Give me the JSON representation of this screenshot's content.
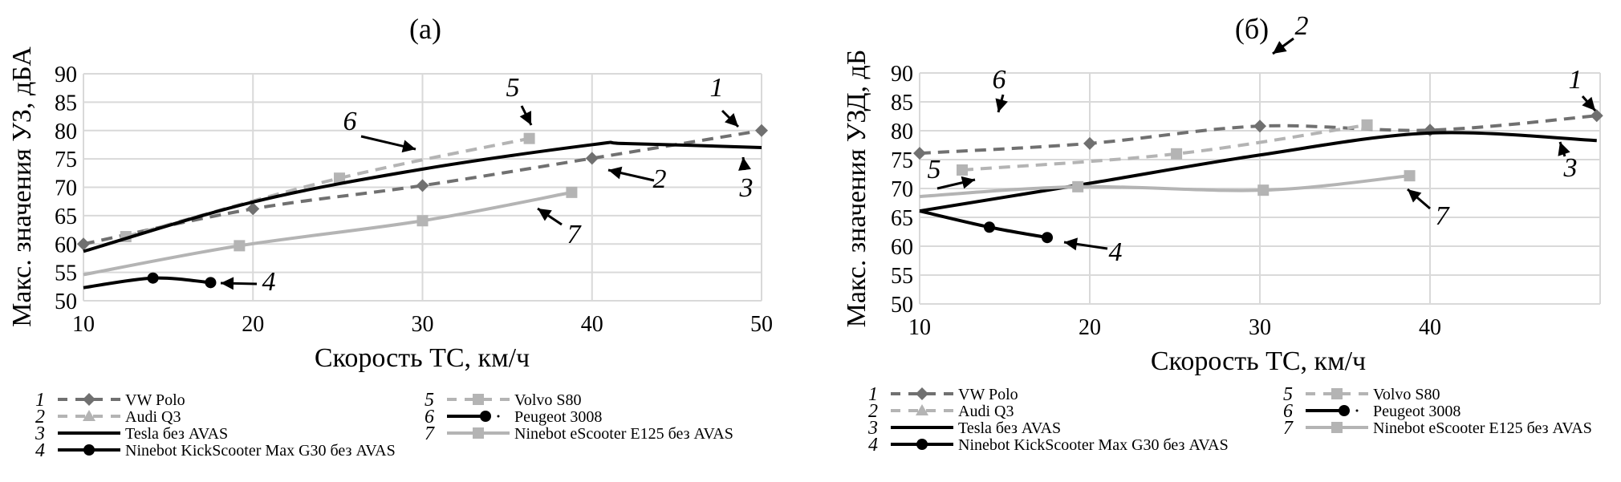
{
  "chart_data": [
    {
      "type": "line",
      "panel_label": "(a)",
      "xlabel": "Скорость ТС, км/ч",
      "ylabel": "Макс. значения УЗ, дБА",
      "xlim": [
        10,
        50
      ],
      "ylim": [
        50,
        90
      ],
      "xticks": [
        "10",
        "20",
        "30",
        "40",
        "50"
      ],
      "yticks": [
        "50",
        "55",
        "60",
        "65",
        "70",
        "75",
        "80",
        "85",
        "90"
      ],
      "grid": true,
      "series": [
        {
          "id": "1",
          "name": "VW Polo",
          "x": [
            10,
            20,
            30,
            40,
            50
          ],
          "y": [
            60.0,
            66.2,
            70.3,
            75.1,
            80.0
          ]
        },
        {
          "id": "5",
          "name": "Volvo S80",
          "x": [
            12.5,
            25.1,
            36.3
          ],
          "y": [
            61.3,
            71.6,
            78.6
          ]
        },
        {
          "id": "3",
          "name": "Tesla без AVAS",
          "x": [
            10,
            20,
            30,
            40,
            42,
            50
          ],
          "y": [
            58.7,
            67.4,
            73.2,
            77.5,
            77.7,
            77.0
          ]
        },
        {
          "id": "4",
          "name": "Ninebot KickScooter Max G30 без AVAS",
          "x": [
            10,
            14.1,
            17.5
          ],
          "y": [
            52.3,
            54.0,
            53.2
          ]
        },
        {
          "id": "7",
          "name": "Ninebot eScooter E125 без AVAS",
          "x": [
            10,
            19.2,
            30,
            38.8
          ],
          "y": [
            54.6,
            59.7,
            64.1,
            69.1
          ]
        }
      ],
      "callouts": [
        {
          "text": "1",
          "series": "VW Polo"
        },
        {
          "text": "2",
          "series": "Audi Q3"
        },
        {
          "text": "3",
          "series": "Tesla без AVAS"
        },
        {
          "text": "4",
          "series": "Ninebot KickScooter Max G30 без AVAS"
        },
        {
          "text": "5",
          "series": "Volvo S80"
        },
        {
          "text": "6",
          "series": "Peugeot 3008"
        },
        {
          "text": "7",
          "series": "Ninebot eScooter E125 без AVAS"
        }
      ]
    },
    {
      "type": "line",
      "panel_label": "(б)",
      "xlabel": "Скорость ТС, км/ч",
      "ylabel": "Макс. значения УЗД, дБ",
      "xlim": [
        10,
        50
      ],
      "ylim": [
        50,
        90
      ],
      "xticks": [
        "10",
        "20",
        "30",
        "40"
      ],
      "yticks": [
        "50",
        "55",
        "60",
        "65",
        "70",
        "75",
        "80",
        "85",
        "90"
      ],
      "grid": true,
      "series": [
        {
          "id": "1",
          "name": "VW Polo",
          "x": [
            10,
            20,
            30,
            40,
            49.8
          ],
          "y": [
            76.1,
            77.8,
            80.8,
            80.1,
            82.6
          ]
        },
        {
          "id": "5",
          "name": "Volvo S80",
          "x": [
            12.5,
            25.1,
            36.3
          ],
          "y": [
            73.2,
            76.0,
            81.0
          ]
        },
        {
          "id": "3",
          "name": "Tesla без AVAS",
          "x": [
            10,
            20,
            30,
            40,
            49.8
          ],
          "y": [
            66.1,
            70.9,
            75.8,
            79.6,
            78.3
          ]
        },
        {
          "id": "4",
          "name": "Ninebot KickScooter Max G30 без AVAS",
          "x": [
            10,
            14.1,
            17.5
          ],
          "y": [
            66.1,
            63.3,
            61.5
          ]
        },
        {
          "id": "7",
          "name": "Ninebot eScooter E125 без AVAS",
          "x": [
            10,
            19.3,
            30.2,
            38.8
          ],
          "y": [
            68.6,
            70.3,
            69.7,
            72.2
          ]
        }
      ],
      "callouts": [
        {
          "text": "1",
          "series": "VW Polo"
        },
        {
          "text": "2",
          "series": "Audi Q3"
        },
        {
          "text": "3",
          "series": "Tesla без AVAS"
        },
        {
          "text": "4",
          "series": "Ninebot KickScooter Max G30 без AVAS"
        },
        {
          "text": "5",
          "series": "Volvo S80"
        },
        {
          "text": "6",
          "series": "Peugeot 3008"
        },
        {
          "text": "7",
          "series": "Ninebot eScooter E125 без AVAS"
        }
      ]
    }
  ],
  "legend": [
    {
      "num": "1",
      "label": "VW Polo",
      "style": "dashed",
      "marker": "diamond",
      "color": "#707070"
    },
    {
      "num": "2",
      "label": "Audi Q3",
      "style": "dashed",
      "marker": "triangle",
      "color": "#b4b4b4"
    },
    {
      "num": "3",
      "label": "Tesla без AVAS",
      "style": "solid",
      "marker": "none",
      "color": "#000000"
    },
    {
      "num": "4",
      "label": "Ninebot KickScooter Max G30 без AVAS",
      "style": "solid",
      "marker": "circle",
      "color": "#000000"
    },
    {
      "num": "5",
      "label": "Volvo S80",
      "style": "dashed",
      "marker": "square",
      "color": "#b4b4b4"
    },
    {
      "num": "6",
      "label": "Peugeot 3008",
      "style": "dotted",
      "marker": "circle",
      "color": "#000000"
    },
    {
      "num": "7",
      "label": "Ninebot eScooter E125 без AVAS",
      "style": "solid",
      "marker": "square",
      "color": "#b4b4b4"
    }
  ],
  "legend_b_g30_label": "Ninebot KickScooter Max G30  без AVAS",
  "colors": {
    "grid": "#d9d9d9",
    "vw": "#707070",
    "lightgray": "#b4b4b4",
    "black": "#000000"
  }
}
